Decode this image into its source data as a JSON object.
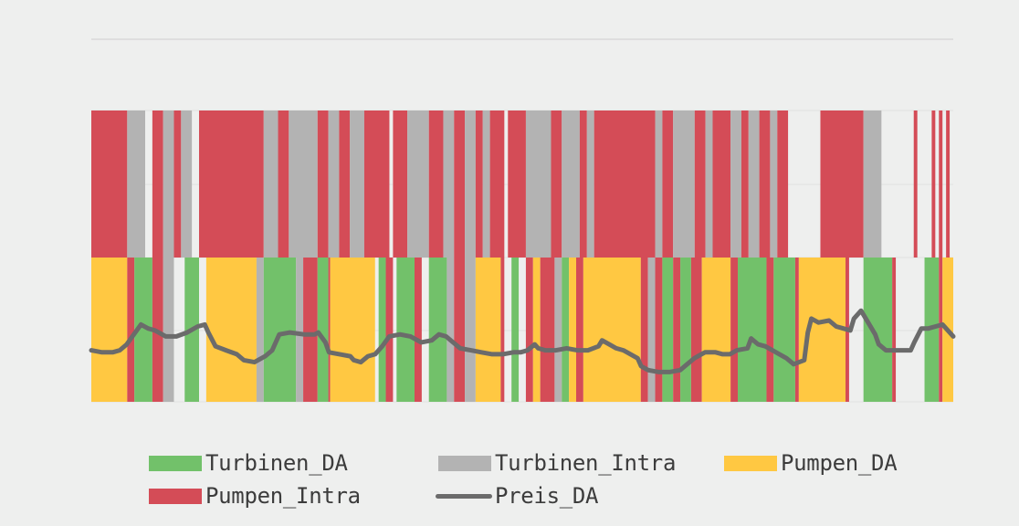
{
  "chart_data": {
    "type": "area",
    "title": "",
    "xlabel": "",
    "ylabel": "",
    "grid": true,
    "legend_position": "bottom",
    "slots": 240,
    "top_band": {
      "segments": [
        {
          "series": "Pumpen_Intra",
          "start": 0,
          "end": 10
        },
        {
          "series": "Turbinen_Intra",
          "start": 10,
          "end": 15
        },
        {
          "series": "Pumpen_Intra",
          "start": 17,
          "end": 20
        },
        {
          "series": "Turbinen_Intra",
          "start": 20,
          "end": 23
        },
        {
          "series": "Pumpen_Intra",
          "start": 23,
          "end": 25
        },
        {
          "series": "Turbinen_Intra",
          "start": 25,
          "end": 28
        },
        {
          "series": "Pumpen_Intra",
          "start": 30,
          "end": 48
        },
        {
          "series": "Turbinen_Intra",
          "start": 48,
          "end": 52
        },
        {
          "series": "Pumpen_Intra",
          "start": 52,
          "end": 55
        },
        {
          "series": "Turbinen_Intra",
          "start": 55,
          "end": 63
        },
        {
          "series": "Pumpen_Intra",
          "start": 63,
          "end": 66
        },
        {
          "series": "Turbinen_Intra",
          "start": 66,
          "end": 69
        },
        {
          "series": "Pumpen_Intra",
          "start": 69,
          "end": 72
        },
        {
          "series": "Turbinen_Intra",
          "start": 72,
          "end": 76
        },
        {
          "series": "Pumpen_Intra",
          "start": 76,
          "end": 83
        },
        {
          "series": "Pumpen_Intra",
          "start": 84,
          "end": 88
        },
        {
          "series": "Turbinen_Intra",
          "start": 88,
          "end": 94
        },
        {
          "series": "Pumpen_Intra",
          "start": 94,
          "end": 98
        },
        {
          "series": "Turbinen_Intra",
          "start": 98,
          "end": 101
        },
        {
          "series": "Pumpen_Intra",
          "start": 101,
          "end": 104
        },
        {
          "series": "Turbinen_Intra",
          "start": 104,
          "end": 107
        },
        {
          "series": "Pumpen_Intra",
          "start": 107,
          "end": 109
        },
        {
          "series": "Turbinen_Intra",
          "start": 109,
          "end": 111
        },
        {
          "series": "Pumpen_Intra",
          "start": 111,
          "end": 115
        },
        {
          "series": "Pumpen_Intra",
          "start": 116,
          "end": 121
        },
        {
          "series": "Turbinen_Intra",
          "start": 121,
          "end": 128
        },
        {
          "series": "Pumpen_Intra",
          "start": 128,
          "end": 131
        },
        {
          "series": "Turbinen_Intra",
          "start": 131,
          "end": 136
        },
        {
          "series": "Pumpen_Intra",
          "start": 136,
          "end": 138
        },
        {
          "series": "Turbinen_Intra",
          "start": 138,
          "end": 140
        },
        {
          "series": "Pumpen_Intra",
          "start": 140,
          "end": 157
        },
        {
          "series": "Turbinen_Intra",
          "start": 157,
          "end": 159
        },
        {
          "series": "Pumpen_Intra",
          "start": 159,
          "end": 162
        },
        {
          "series": "Turbinen_Intra",
          "start": 162,
          "end": 168
        },
        {
          "series": "Pumpen_Intra",
          "start": 168,
          "end": 171
        },
        {
          "series": "Turbinen_Intra",
          "start": 171,
          "end": 173
        },
        {
          "series": "Pumpen_Intra",
          "start": 173,
          "end": 178
        },
        {
          "series": "Turbinen_Intra",
          "start": 178,
          "end": 181
        },
        {
          "series": "Pumpen_Intra",
          "start": 181,
          "end": 183
        },
        {
          "series": "Turbinen_Intra",
          "start": 183,
          "end": 186
        },
        {
          "series": "Pumpen_Intra",
          "start": 186,
          "end": 189
        },
        {
          "series": "Turbinen_Intra",
          "start": 189,
          "end": 191
        },
        {
          "series": "Pumpen_Intra",
          "start": 191,
          "end": 194
        },
        {
          "series": "Pumpen_Intra",
          "start": 203,
          "end": 215
        },
        {
          "series": "Turbinen_Intra",
          "start": 215,
          "end": 220
        },
        {
          "series": "Pumpen_Intra",
          "start": 229,
          "end": 230
        },
        {
          "series": "Pumpen_Intra",
          "start": 234,
          "end": 235
        },
        {
          "series": "Pumpen_Intra",
          "start": 236,
          "end": 237
        },
        {
          "series": "Pumpen_Intra",
          "start": 238,
          "end": 239
        }
      ]
    },
    "bottom_band": {
      "segments": [
        {
          "series": "Pumpen_DA",
          "start": 0,
          "end": 10
        },
        {
          "series": "Pumpen_Intra",
          "start": 10,
          "end": 12
        },
        {
          "series": "Turbinen_DA",
          "start": 12,
          "end": 17
        },
        {
          "series": "Pumpen_Intra",
          "start": 17,
          "end": 20
        },
        {
          "series": "Turbinen_Intra",
          "start": 20,
          "end": 23
        },
        {
          "series": "Turbinen_DA",
          "start": 26,
          "end": 30
        },
        {
          "series": "Pumpen_DA",
          "start": 32,
          "end": 46
        },
        {
          "series": "Turbinen_Intra",
          "start": 46,
          "end": 48
        },
        {
          "series": "Turbinen_DA",
          "start": 48,
          "end": 57
        },
        {
          "series": "Turbinen_Intra",
          "start": 57,
          "end": 59
        },
        {
          "series": "Pumpen_Intra",
          "start": 59,
          "end": 63
        },
        {
          "series": "Turbinen_DA",
          "start": 63,
          "end": 66
        },
        {
          "series": "Pumpen_Intra",
          "start": 66,
          "end": 66.5
        },
        {
          "series": "Pumpen_DA",
          "start": 66.5,
          "end": 79
        },
        {
          "series": "Turbinen_DA",
          "start": 80,
          "end": 82
        },
        {
          "series": "Pumpen_Intra",
          "start": 82,
          "end": 84
        },
        {
          "series": "Turbinen_DA",
          "start": 85,
          "end": 90
        },
        {
          "series": "Pumpen_Intra",
          "start": 90,
          "end": 92
        },
        {
          "series": "Turbinen_DA",
          "start": 94,
          "end": 99
        },
        {
          "series": "Turbinen_Intra",
          "start": 99,
          "end": 101
        },
        {
          "series": "Pumpen_Intra",
          "start": 101,
          "end": 104
        },
        {
          "series": "Turbinen_Intra",
          "start": 104,
          "end": 107
        },
        {
          "series": "Pumpen_DA",
          "start": 107,
          "end": 114
        },
        {
          "series": "Pumpen_Intra",
          "start": 114,
          "end": 115
        },
        {
          "series": "Turbinen_DA",
          "start": 117,
          "end": 119
        },
        {
          "series": "Pumpen_Intra",
          "start": 121,
          "end": 123
        },
        {
          "series": "Pumpen_DA",
          "start": 123,
          "end": 125
        },
        {
          "series": "Pumpen_Intra",
          "start": 125,
          "end": 129
        },
        {
          "series": "Turbinen_Intra",
          "start": 129,
          "end": 131
        },
        {
          "series": "Turbinen_DA",
          "start": 131,
          "end": 133
        },
        {
          "series": "Pumpen_DA",
          "start": 133,
          "end": 135
        },
        {
          "series": "Pumpen_Intra",
          "start": 135,
          "end": 137
        },
        {
          "series": "Pumpen_DA",
          "start": 137,
          "end": 153
        },
        {
          "series": "Pumpen_Intra",
          "start": 153,
          "end": 155
        },
        {
          "series": "Turbinen_Intra",
          "start": 155,
          "end": 157
        },
        {
          "series": "Pumpen_Intra",
          "start": 157,
          "end": 159
        },
        {
          "series": "Turbinen_DA",
          "start": 159,
          "end": 162
        },
        {
          "series": "Pumpen_Intra",
          "start": 162,
          "end": 164
        },
        {
          "series": "Turbinen_DA",
          "start": 164,
          "end": 167
        },
        {
          "series": "Pumpen_Intra",
          "start": 167,
          "end": 170
        },
        {
          "series": "Pumpen_DA",
          "start": 170,
          "end": 178
        },
        {
          "series": "Pumpen_Intra",
          "start": 178,
          "end": 180
        },
        {
          "series": "Turbinen_DA",
          "start": 180,
          "end": 188
        },
        {
          "series": "Pumpen_Intra",
          "start": 188,
          "end": 190
        },
        {
          "series": "Turbinen_DA",
          "start": 190,
          "end": 196
        },
        {
          "series": "Pumpen_Intra",
          "start": 196,
          "end": 197
        },
        {
          "series": "Pumpen_DA",
          "start": 197,
          "end": 210
        },
        {
          "series": "Pumpen_Intra",
          "start": 210,
          "end": 211
        },
        {
          "series": "Turbinen_DA",
          "start": 215,
          "end": 223
        },
        {
          "series": "Pumpen_Intra",
          "start": 223,
          "end": 224
        },
        {
          "series": "Turbinen_DA",
          "start": 232,
          "end": 236
        },
        {
          "series": "Pumpen_Intra",
          "start": 236,
          "end": 237
        },
        {
          "series": "Pumpen_DA",
          "start": 237,
          "end": 240
        }
      ]
    },
    "price_series": {
      "name": "Preis_DA",
      "points": [
        [
          0,
          2.6
        ],
        [
          3,
          2.5
        ],
        [
          6,
          2.5
        ],
        [
          8,
          2.6
        ],
        [
          10,
          2.9
        ],
        [
          12,
          3.4
        ],
        [
          14,
          3.9
        ],
        [
          16,
          3.7
        ],
        [
          18,
          3.6
        ],
        [
          21,
          3.3
        ],
        [
          24,
          3.3
        ],
        [
          27,
          3.5
        ],
        [
          30,
          3.8
        ],
        [
          32,
          3.9
        ],
        [
          33,
          3.5
        ],
        [
          35,
          2.8
        ],
        [
          38,
          2.6
        ],
        [
          41,
          2.4
        ],
        [
          43,
          2.1
        ],
        [
          46,
          2.0
        ],
        [
          49,
          2.3
        ],
        [
          51,
          2.6
        ],
        [
          53,
          3.4
        ],
        [
          56,
          3.5
        ],
        [
          60,
          3.4
        ],
        [
          63,
          3.4
        ],
        [
          64,
          3.5
        ],
        [
          66,
          3.0
        ],
        [
          67,
          2.5
        ],
        [
          70,
          2.4
        ],
        [
          73,
          2.3
        ],
        [
          74,
          2.1
        ],
        [
          76,
          2.0
        ],
        [
          78,
          2.3
        ],
        [
          80,
          2.4
        ],
        [
          82,
          2.8
        ],
        [
          84,
          3.3
        ],
        [
          87,
          3.4
        ],
        [
          90,
          3.3
        ],
        [
          93,
          3.0
        ],
        [
          96,
          3.1
        ],
        [
          98,
          3.4
        ],
        [
          100,
          3.3
        ],
        [
          102,
          3.0
        ],
        [
          104,
          2.7
        ],
        [
          107,
          2.6
        ],
        [
          110,
          2.5
        ],
        [
          113,
          2.4
        ],
        [
          116,
          2.4
        ],
        [
          119,
          2.5
        ],
        [
          121,
          2.5
        ],
        [
          123,
          2.6
        ],
        [
          125,
          2.9
        ],
        [
          126,
          2.7
        ],
        [
          128,
          2.6
        ],
        [
          131,
          2.6
        ],
        [
          134,
          2.7
        ],
        [
          137,
          2.6
        ],
        [
          140,
          2.6
        ],
        [
          143,
          2.8
        ],
        [
          144,
          3.1
        ],
        [
          146,
          2.9
        ],
        [
          148,
          2.7
        ],
        [
          150,
          2.6
        ],
        [
          152,
          2.4
        ],
        [
          154,
          2.2
        ],
        [
          155,
          1.8
        ],
        [
          157,
          1.6
        ],
        [
          160,
          1.5
        ],
        [
          163,
          1.5
        ],
        [
          166,
          1.6
        ],
        [
          168,
          1.9
        ],
        [
          170,
          2.2
        ],
        [
          173,
          2.5
        ],
        [
          176,
          2.5
        ],
        [
          178,
          2.4
        ],
        [
          180,
          2.4
        ],
        [
          182,
          2.6
        ],
        [
          185,
          2.7
        ],
        [
          186,
          3.2
        ],
        [
          188,
          2.9
        ],
        [
          190,
          2.8
        ],
        [
          192,
          2.6
        ],
        [
          194,
          2.4
        ],
        [
          196,
          2.2
        ],
        [
          198,
          1.9
        ],
        [
          201,
          2.1
        ],
        [
          202,
          3.5
        ],
        [
          203,
          4.2
        ],
        [
          205,
          4.0
        ],
        [
          208,
          4.1
        ],
        [
          210,
          3.8
        ],
        [
          212,
          3.7
        ],
        [
          214,
          3.6
        ],
        [
          215,
          4.2
        ],
        [
          217,
          4.6
        ],
        [
          219,
          4.0
        ],
        [
          221,
          3.4
        ],
        [
          222,
          2.9
        ],
        [
          224,
          2.6
        ],
        [
          228,
          2.6
        ],
        [
          231,
          2.6
        ],
        [
          232,
          3.0
        ],
        [
          234,
          3.7
        ],
        [
          236,
          3.7
        ],
        [
          238,
          3.8
        ],
        [
          240,
          3.9
        ],
        [
          242,
          3.5
        ],
        [
          243,
          3.3
        ]
      ]
    },
    "colors": {
      "Turbinen_DA": "#72c16a",
      "Turbinen_Intra": "#b3b3b3",
      "Pumpen_DA": "#ffc842",
      "Pumpen_Intra": "#d44c57",
      "Preis_DA": "#6b6b6b",
      "background": "#eeefee",
      "gridline": "#e0e0e0"
    },
    "legend": [
      {
        "name": "Turbinen_DA",
        "kind": "box"
      },
      {
        "name": "Turbinen_Intra",
        "kind": "box"
      },
      {
        "name": "Pumpen_DA",
        "kind": "box"
      },
      {
        "name": "Pumpen_Intra",
        "kind": "box"
      },
      {
        "name": "Preis_DA",
        "kind": "line"
      }
    ]
  }
}
